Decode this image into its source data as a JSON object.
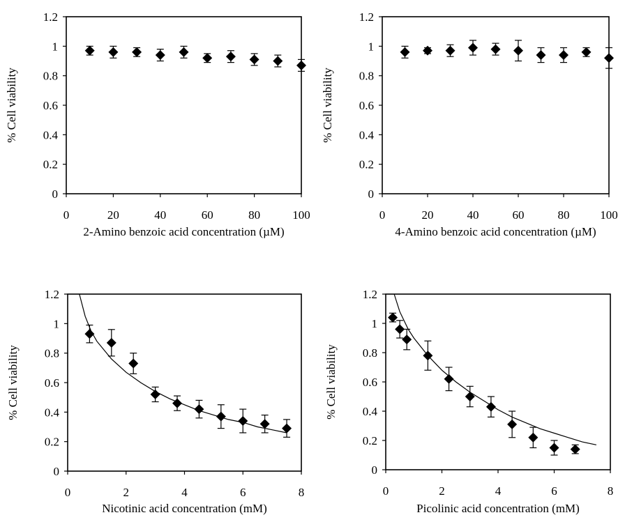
{
  "chart_data": [
    {
      "type": "scatter",
      "xlabel": "2-Amino benzoic acid concentration (µM)",
      "ylabel": "% Cell viability",
      "xlim": [
        0,
        100
      ],
      "ylim": [
        0,
        1.2
      ],
      "xticks": [
        "0",
        "20",
        "40",
        "60",
        "80",
        "100"
      ],
      "yticks": [
        "0",
        "0.2",
        "0.4",
        "0.6",
        "0.8",
        "1",
        "1.2"
      ],
      "series": [
        {
          "x": [
            10,
            20,
            30,
            40,
            50,
            60,
            70,
            80,
            90,
            100
          ],
          "y": [
            0.97,
            0.96,
            0.96,
            0.94,
            0.96,
            0.92,
            0.93,
            0.91,
            0.9,
            0.87
          ],
          "error": [
            0.03,
            0.04,
            0.03,
            0.04,
            0.04,
            0.03,
            0.04,
            0.04,
            0.04,
            0.04
          ]
        }
      ],
      "fit_curve": null
    },
    {
      "type": "scatter",
      "xlabel": "4-Amino benzoic acid concentration (µM)",
      "ylabel": "% Cell viability",
      "xlim": [
        0,
        100
      ],
      "ylim": [
        0,
        1.2
      ],
      "xticks": [
        "0",
        "20",
        "40",
        "60",
        "80",
        "100"
      ],
      "yticks": [
        "0",
        "0.2",
        "0.4",
        "0.6",
        "0.8",
        "1",
        "1.2"
      ],
      "series": [
        {
          "x": [
            10,
            20,
            30,
            40,
            50,
            60,
            70,
            80,
            90,
            100
          ],
          "y": [
            0.96,
            0.97,
            0.97,
            0.99,
            0.98,
            0.97,
            0.94,
            0.94,
            0.96,
            0.92
          ],
          "error": [
            0.04,
            0.02,
            0.04,
            0.05,
            0.04,
            0.07,
            0.05,
            0.05,
            0.03,
            0.07
          ]
        }
      ],
      "fit_curve": null
    },
    {
      "type": "scatter",
      "xlabel": "Nicotinic acid concentration (mM)",
      "ylabel": "% Cell viability",
      "xlim": [
        0,
        8
      ],
      "ylim": [
        0,
        1.2
      ],
      "xticks": [
        "0",
        "2",
        "4",
        "6",
        "8"
      ],
      "yticks": [
        "0",
        "0.2",
        "0.4",
        "0.6",
        "0.8",
        "1",
        "1.2"
      ],
      "series": [
        {
          "x": [
            0.75,
            1.5,
            2.25,
            3.0,
            3.75,
            4.5,
            5.25,
            6.0,
            6.75,
            7.5
          ],
          "y": [
            0.93,
            0.87,
            0.73,
            0.52,
            0.46,
            0.42,
            0.37,
            0.34,
            0.32,
            0.29
          ],
          "error": [
            0.06,
            0.09,
            0.07,
            0.05,
            0.05,
            0.06,
            0.08,
            0.08,
            0.06,
            0.06
          ]
        }
      ],
      "fit_curve": {
        "x": [
          0.4,
          0.6,
          0.8,
          1.0,
          1.5,
          2.0,
          2.5,
          3.0,
          3.5,
          4.0,
          4.5,
          5.0,
          5.5,
          6.0,
          6.5,
          7.0,
          7.5
        ],
        "y": [
          1.2,
          1.05,
          0.95,
          0.88,
          0.76,
          0.67,
          0.6,
          0.54,
          0.49,
          0.45,
          0.41,
          0.38,
          0.35,
          0.33,
          0.3,
          0.28,
          0.26
        ]
      }
    },
    {
      "type": "scatter",
      "xlabel": "Picolinic acid concentration (mM)",
      "ylabel": "% Cell viability",
      "xlim": [
        0,
        8
      ],
      "ylim": [
        0,
        1.2
      ],
      "xticks": [
        "0",
        "2",
        "4",
        "6",
        "8"
      ],
      "yticks": [
        "0",
        "0.2",
        "0.4",
        "0.6",
        "0.8",
        "1",
        "1.2"
      ],
      "series": [
        {
          "x": [
            0.25,
            0.5,
            0.75,
            1.5,
            2.25,
            3.0,
            3.75,
            4.5,
            5.25,
            6.0,
            6.75
          ],
          "y": [
            1.04,
            0.96,
            0.89,
            0.78,
            0.62,
            0.5,
            0.43,
            0.31,
            0.22,
            0.15,
            0.14
          ],
          "error": [
            0.03,
            0.06,
            0.07,
            0.1,
            0.08,
            0.07,
            0.07,
            0.09,
            0.07,
            0.05,
            0.03
          ]
        }
      ],
      "fit_curve": {
        "x": [
          0.3,
          0.5,
          0.8,
          1.0,
          1.5,
          2.0,
          2.5,
          3.0,
          3.5,
          4.0,
          4.5,
          5.0,
          5.5,
          6.0,
          6.5,
          7.0,
          7.5
        ],
        "y": [
          1.2,
          1.08,
          0.96,
          0.9,
          0.78,
          0.68,
          0.6,
          0.53,
          0.47,
          0.41,
          0.36,
          0.32,
          0.28,
          0.25,
          0.22,
          0.19,
          0.17
        ]
      }
    }
  ]
}
